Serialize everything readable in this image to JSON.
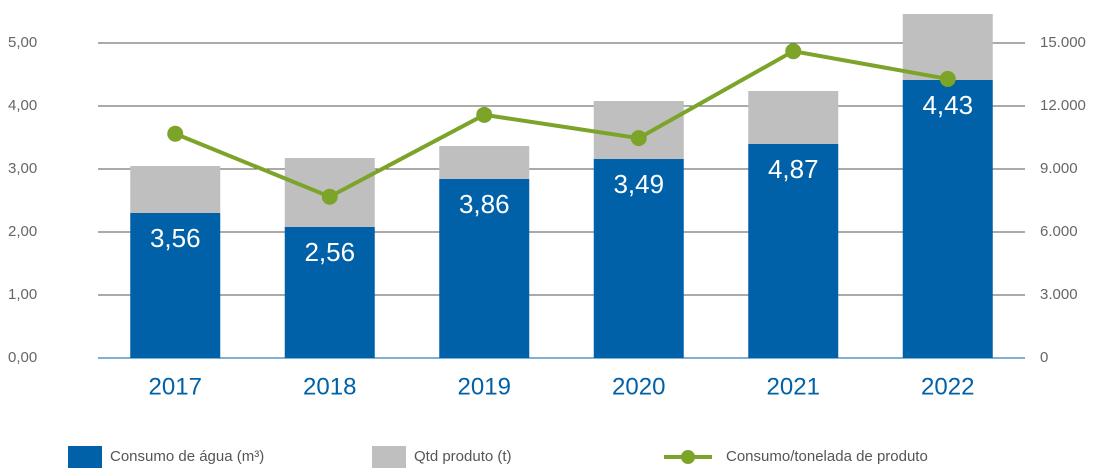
{
  "chart_data": {
    "type": "bar",
    "categories": [
      "2017",
      "2018",
      "2019",
      "2020",
      "2021",
      "2022"
    ],
    "series": [
      {
        "name": "Consumo de água (m³)",
        "color": "#0061a8",
        "axis": "y2",
        "stack": true,
        "values": [
          6905,
          6238,
          8524,
          9476,
          10190,
          13238
        ]
      },
      {
        "name": "Qtd produto (t)",
        "color": "#bfbfbf",
        "axis": "y2",
        "stack": true,
        "values": [
          2238,
          3286,
          1571,
          2762,
          2524,
          3143
        ]
      },
      {
        "name": "Consumo/tonelada de produto",
        "color": "#7ba428",
        "type": "line",
        "axis": "y",
        "values": [
          3.56,
          2.56,
          3.86,
          3.49,
          4.87,
          4.43
        ],
        "value_labels": [
          "3,56",
          "2,56",
          "3,86",
          "3,49",
          "4,87",
          "4,43"
        ]
      }
    ],
    "ylim": [
      0,
      5
    ],
    "yticks": [
      {
        "value": 0,
        "label": "0,00"
      },
      {
        "value": 1,
        "label": "1,00"
      },
      {
        "value": 2,
        "label": "2,00"
      },
      {
        "value": 3,
        "label": "3,00"
      },
      {
        "value": 4,
        "label": "4,00"
      },
      {
        "value": 5,
        "label": "5,00"
      }
    ],
    "y2lim": [
      0,
      15000
    ],
    "y2ticks": [
      0,
      {
        "value": 3000,
        "label": "3.000"
      },
      {
        "value": 6000,
        "label": "6.000"
      },
      {
        "value": 9000,
        "label": "9.000"
      },
      {
        "value": 12000,
        "label": "12.000"
      },
      {
        "value": 15000,
        "label": "15.000"
      }
    ],
    "grid": true,
    "legend": "bottom"
  }
}
